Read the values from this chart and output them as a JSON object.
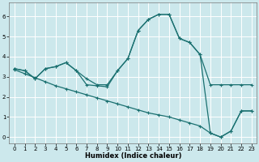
{
  "xlabel": "Humidex (Indice chaleur)",
  "background_color": "#cce8ec",
  "grid_color": "#ffffff",
  "line_color": "#1a7070",
  "xlim": [
    -0.5,
    23.5
  ],
  "ylim": [
    -0.3,
    6.7
  ],
  "xticks": [
    0,
    1,
    2,
    3,
    4,
    5,
    6,
    7,
    8,
    9,
    10,
    11,
    12,
    13,
    14,
    15,
    16,
    17,
    18,
    19,
    20,
    21,
    22,
    23
  ],
  "yticks": [
    0,
    1,
    2,
    3,
    4,
    5,
    6
  ],
  "line1_x": [
    0,
    1,
    2,
    3,
    4,
    5,
    6,
    7,
    8,
    9,
    10,
    11,
    12,
    13,
    14,
    15,
    16,
    17,
    18,
    19,
    20,
    21,
    22,
    23
  ],
  "line1_y": [
    3.4,
    3.3,
    2.9,
    3.4,
    3.5,
    3.7,
    3.3,
    2.9,
    2.6,
    2.6,
    3.3,
    3.9,
    5.3,
    5.85,
    6.1,
    6.1,
    4.9,
    4.7,
    4.1,
    2.6,
    2.6,
    2.6,
    2.6,
    2.6
  ],
  "line2_x": [
    0,
    1,
    2,
    3,
    4,
    5,
    6,
    7,
    8,
    9,
    10,
    11,
    12,
    13,
    14,
    15,
    16,
    17,
    18,
    19,
    20,
    21,
    22,
    23
  ],
  "line2_y": [
    3.4,
    3.3,
    2.9,
    3.4,
    3.5,
    3.7,
    3.3,
    2.6,
    2.55,
    2.5,
    3.3,
    3.9,
    5.3,
    5.85,
    6.1,
    6.1,
    4.9,
    4.7,
    4.1,
    0.2,
    0.0,
    0.3,
    1.3,
    1.3
  ],
  "line3_x": [
    0,
    1,
    2,
    3,
    4,
    5,
    6,
    7,
    8,
    9,
    10,
    11,
    12,
    13,
    14,
    15,
    16,
    17,
    18,
    19,
    20,
    21,
    22,
    23
  ],
  "line3_y": [
    3.35,
    3.15,
    2.95,
    2.75,
    2.55,
    2.4,
    2.25,
    2.1,
    1.95,
    1.8,
    1.65,
    1.5,
    1.35,
    1.2,
    1.1,
    1.0,
    0.85,
    0.7,
    0.55,
    0.2,
    0.0,
    0.3,
    1.3,
    1.3
  ]
}
